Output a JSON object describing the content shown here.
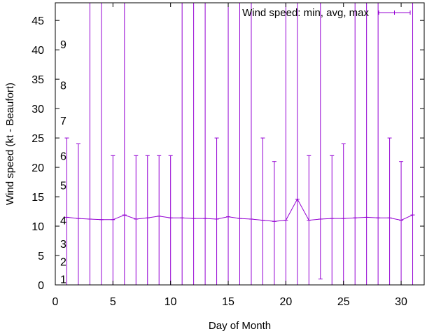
{
  "chart_data": {
    "type": "line",
    "title": "",
    "xlabel": "Day of Month",
    "ylabel": "Wind speed (kt - Beaufort)",
    "xlim": [
      0,
      32
    ],
    "ylim": [
      0,
      48
    ],
    "x_ticks": [
      0,
      5,
      10,
      15,
      20,
      25,
      30
    ],
    "y_ticks": [
      0,
      5,
      10,
      15,
      20,
      25,
      30,
      35,
      40,
      45
    ],
    "grid": false,
    "legend_position": "top-right",
    "beaufort_labels": [
      {
        "label": "1",
        "y": 1
      },
      {
        "label": "2",
        "y": 4
      },
      {
        "label": "3",
        "y": 7
      },
      {
        "label": "4",
        "y": 11
      },
      {
        "label": "5",
        "y": 17
      },
      {
        "label": "6",
        "y": 22
      },
      {
        "label": "7",
        "y": 28
      },
      {
        "label": "8",
        "y": 34
      },
      {
        "label": "9",
        "y": 41
      }
    ],
    "series": [
      {
        "name": "Wind speed: min, avg, max",
        "color": "#9400d3",
        "x": [
          1,
          2,
          3,
          4,
          5,
          6,
          7,
          8,
          9,
          10,
          11,
          12,
          13,
          14,
          15,
          16,
          17,
          18,
          19,
          20,
          21,
          22,
          23,
          24,
          25,
          26,
          27,
          28,
          29,
          30,
          31
        ],
        "avg": [
          11.5,
          11.3,
          11.2,
          11.1,
          11.1,
          11.9,
          11.2,
          11.4,
          11.7,
          11.4,
          11.4,
          11.3,
          11.3,
          11.2,
          11.6,
          11.3,
          11.2,
          11.0,
          10.8,
          11.0,
          14.6,
          11.0,
          11.2,
          11.3,
          11.3,
          11.4,
          11.5,
          11.4,
          11.4,
          11.0,
          11.9
        ],
        "min": [
          0,
          0,
          0,
          0,
          0,
          0,
          0,
          0,
          0,
          0,
          0,
          0,
          0,
          0,
          0,
          0,
          0,
          0,
          0,
          0,
          0,
          0,
          1,
          0,
          0,
          0,
          0,
          0,
          0,
          0,
          0
        ],
        "max": [
          25,
          24,
          48,
          48,
          22,
          48,
          22,
          22,
          22,
          22,
          48,
          48,
          48,
          25,
          48,
          48,
          48,
          25,
          21,
          48,
          48,
          22,
          48,
          22,
          24,
          48,
          48,
          48,
          25,
          21,
          48
        ]
      }
    ]
  }
}
